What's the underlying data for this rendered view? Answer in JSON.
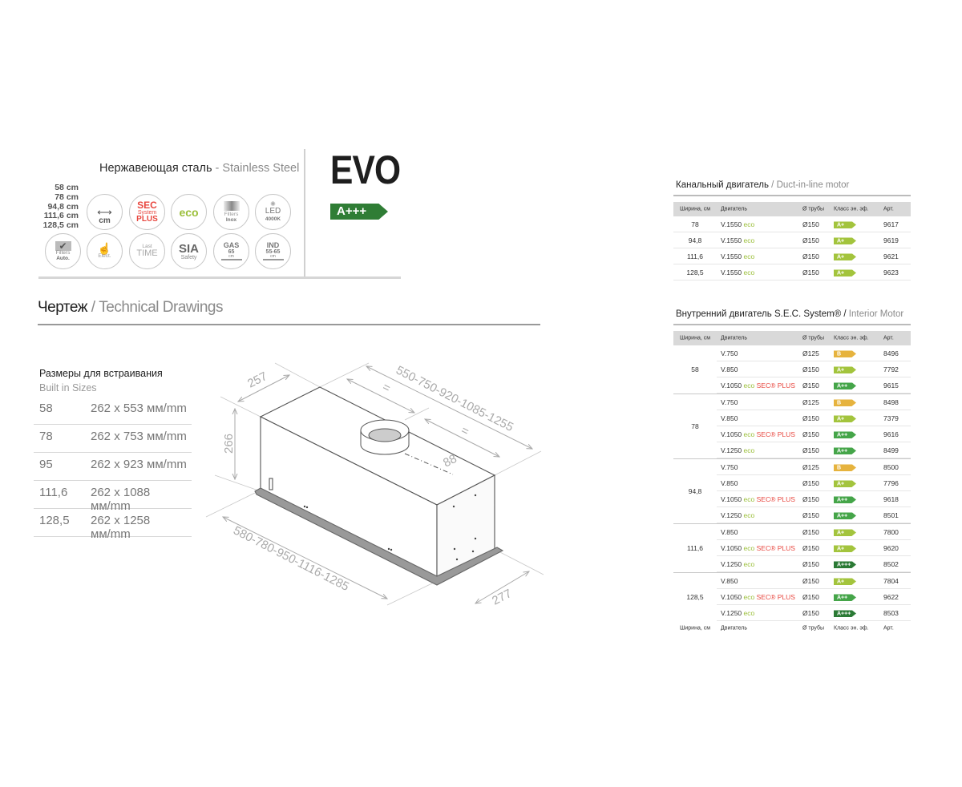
{
  "header": {
    "material_ru": "Нержавеющая сталь",
    "material_sep": " - ",
    "material_en": "Stainless Steel",
    "sizes": [
      "58 cm",
      "78 cm",
      "94,8 cm",
      "111,6 cm",
      "128,5 cm"
    ],
    "model": "EVO",
    "energy_class": "A+++",
    "energy_color": "#2f7d35"
  },
  "feature_icons": [
    {
      "id": "width",
      "lines": [
        "cm"
      ],
      "icon": "double-arrow-icon"
    },
    {
      "id": "sec",
      "lines": [
        "SEC",
        "System",
        "PLUS"
      ],
      "color": "#e8473f"
    },
    {
      "id": "eco",
      "lines": [
        "eco"
      ],
      "color": "#9bbf3a"
    },
    {
      "id": "filters-inox",
      "lines": [
        "Filters",
        "Inox"
      ],
      "icon": "filter-icon"
    },
    {
      "id": "led",
      "lines": [
        "LED",
        "4000K"
      ],
      "icon": "sun-icon"
    },
    {
      "id": "filters-auto",
      "lines": [
        "Filters",
        "Auto."
      ],
      "icon": "checkmark-icon"
    },
    {
      "id": "elect",
      "lines": [
        "Elect."
      ],
      "icon": "hand-pointer-icon"
    },
    {
      "id": "last-time",
      "lines": [
        "Last",
        "TIME"
      ]
    },
    {
      "id": "sia",
      "lines": [
        "SIA",
        "Safety"
      ]
    },
    {
      "id": "gas",
      "lines": [
        "GAS",
        "65",
        "cm"
      ],
      "icon": "hood-height-icon"
    },
    {
      "id": "ind",
      "lines": [
        "IND",
        "55-65",
        "cm"
      ],
      "icon": "hood-height-icon"
    }
  ],
  "technical": {
    "title_ru": "Чертеж",
    "title_sep": " / ",
    "title_en": "Technical Drawings",
    "built_in_ru": "Размеры для встраивания",
    "built_in_en": "Built in Sizes",
    "built_in_rows": [
      {
        "width": "58",
        "dims": "262 x 553 мм/mm"
      },
      {
        "width": "78",
        "dims": "262 x 753 мм/mm"
      },
      {
        "width": "95",
        "dims": "262 x 923 мм/mm"
      },
      {
        "width": "111,6",
        "dims": "262 x 1088 мм/mm"
      },
      {
        "width": "128,5",
        "dims": "262 x 1258 мм/mm"
      }
    ],
    "drawing_labels": {
      "depth_top": "257",
      "height": "266",
      "length_top": "550-750-920-1085-1255",
      "equal1": "=",
      "equal2": "=",
      "offset": "88",
      "length_bottom": "580-780-950-1116-1285",
      "depth_bottom": "277"
    }
  },
  "columns": {
    "width": "Ширина, см",
    "motor": "Двигатель",
    "pipe": "Ø трубы",
    "class": "Класс эн. эф.",
    "art": "Арт."
  },
  "class_colors": {
    "B": "#e6b33e",
    "A+": "#a3c43d",
    "A++": "#45a549",
    "A+++": "#2b7a35"
  },
  "duct_motor": {
    "title_ru": "Канальный двигатель",
    "title_sep": " / ",
    "title_en": "Duct-in-line motor",
    "rows": [
      {
        "width": "78",
        "motor": "V.1550",
        "eco": "eco",
        "pipe": "Ø150",
        "class": "A+",
        "art": "9617"
      },
      {
        "width": "94,8",
        "motor": "V.1550",
        "eco": "eco",
        "pipe": "Ø150",
        "class": "A+",
        "art": "9619"
      },
      {
        "width": "111,6",
        "motor": "V.1550",
        "eco": "eco",
        "pipe": "Ø150",
        "class": "A+",
        "art": "9621"
      },
      {
        "width": "128,5",
        "motor": "V.1550",
        "eco": "eco",
        "pipe": "Ø150",
        "class": "A+",
        "art": "9623"
      }
    ]
  },
  "interior_motor": {
    "title_ru": "Внутренний двигатель S.E.C. System® / ",
    "title_en": "Interior Motor",
    "groups": [
      {
        "width": "58",
        "rows": [
          {
            "motor": "V.750",
            "pipe": "Ø125",
            "class": "B",
            "art": "8496"
          },
          {
            "motor": "V.850",
            "pipe": "Ø150",
            "class": "A+",
            "art": "7792"
          },
          {
            "motor": "V.1050",
            "eco": "eco",
            "sec": "SEC® PLUS",
            "pipe": "Ø150",
            "class": "A++",
            "art": "9615"
          }
        ]
      },
      {
        "width": "78",
        "rows": [
          {
            "motor": "V.750",
            "pipe": "Ø125",
            "class": "B",
            "art": "8498"
          },
          {
            "motor": "V.850",
            "pipe": "Ø150",
            "class": "A+",
            "art": "7379"
          },
          {
            "motor": "V.1050",
            "eco": "eco",
            "sec": "SEC® PLUS",
            "pipe": "Ø150",
            "class": "A++",
            "art": "9616"
          },
          {
            "motor": "V.1250",
            "eco": "eco",
            "pipe": "Ø150",
            "class": "A++",
            "art": "8499"
          }
        ]
      },
      {
        "width": "94,8",
        "rows": [
          {
            "motor": "V.750",
            "pipe": "Ø125",
            "class": "B",
            "art": "8500"
          },
          {
            "motor": "V.850",
            "pipe": "Ø150",
            "class": "A+",
            "art": "7796"
          },
          {
            "motor": "V.1050",
            "eco": "eco",
            "sec": "SEC® PLUS",
            "pipe": "Ø150",
            "class": "A++",
            "art": "9618"
          },
          {
            "motor": "V.1250",
            "eco": "eco",
            "pipe": "Ø150",
            "class": "A++",
            "art": "8501"
          }
        ]
      },
      {
        "width": "111,6",
        "rows": [
          {
            "motor": "V.850",
            "pipe": "Ø150",
            "class": "A+",
            "art": "7800"
          },
          {
            "motor": "V.1050",
            "eco": "eco",
            "sec": "SEC® PLUS",
            "pipe": "Ø150",
            "class": "A+",
            "art": "9620"
          },
          {
            "motor": "V.1250",
            "eco": "eco",
            "pipe": "Ø150",
            "class": "A+++",
            "art": "8502"
          }
        ]
      },
      {
        "width": "128,5",
        "rows": [
          {
            "motor": "V.850",
            "pipe": "Ø150",
            "class": "A+",
            "art": "7804"
          },
          {
            "motor": "V.1050",
            "eco": "eco",
            "sec": "SEC® PLUS",
            "pipe": "Ø150",
            "class": "A++",
            "art": "9622"
          },
          {
            "motor": "V.1250",
            "eco": "eco",
            "pipe": "Ø150",
            "class": "A+++",
            "art": "8503"
          }
        ]
      }
    ]
  }
}
